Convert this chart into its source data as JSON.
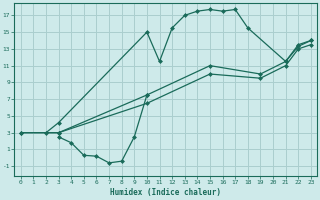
{
  "xlabel": "Humidex (Indice chaleur)",
  "bg_color": "#ceeaea",
  "grid_color": "#aacece",
  "line_color": "#1a6b5a",
  "xlim": [
    -0.5,
    23.5
  ],
  "ylim": [
    -2.2,
    18.5
  ],
  "xticks": [
    0,
    1,
    2,
    3,
    4,
    5,
    6,
    7,
    8,
    9,
    10,
    11,
    12,
    13,
    14,
    15,
    16,
    17,
    18,
    19,
    20,
    21,
    22,
    23
  ],
  "yticks": [
    -1,
    1,
    3,
    5,
    7,
    9,
    11,
    13,
    15,
    17
  ],
  "line1_x": [
    2,
    3,
    10,
    11,
    12,
    13,
    14,
    15,
    16,
    17,
    18,
    21,
    22,
    23
  ],
  "line1_y": [
    3,
    4.2,
    15.0,
    11.5,
    15.5,
    17.0,
    17.5,
    17.7,
    17.5,
    17.7,
    15.5,
    11.5,
    13.3,
    14.0
  ],
  "line2_x": [
    0,
    3,
    10,
    15,
    19,
    21,
    22,
    23
  ],
  "line2_y": [
    3,
    3,
    7.5,
    11.0,
    10.0,
    11.5,
    13.5,
    14.0
  ],
  "line3_x": [
    3,
    4,
    5,
    6,
    7,
    8,
    9,
    10
  ],
  "line3_y": [
    2.5,
    1.8,
    0.3,
    0.2,
    -0.6,
    -0.4,
    2.5,
    7.5
  ],
  "line4_x": [
    0,
    3,
    10,
    15,
    19,
    21,
    22,
    23
  ],
  "line4_y": [
    3,
    3,
    6.5,
    10.0,
    9.5,
    11.0,
    13.0,
    13.5
  ]
}
